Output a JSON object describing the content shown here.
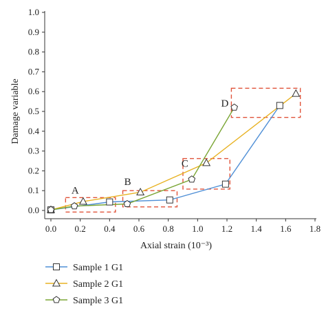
{
  "chart_data": {
    "type": "line",
    "title": "",
    "xlabel": "Axial strain (10⁻³)",
    "ylabel": "Damage variable",
    "xlim": [
      -0.05,
      1.8
    ],
    "ylim": [
      -0.02,
      1.0
    ],
    "xticks": [
      "0.0",
      "0.2",
      "0.4",
      "0.6",
      "0.8",
      "1.0",
      "1.2",
      "1.4",
      "1.6",
      "1.8"
    ],
    "yticks": [
      "0.0",
      "0.1",
      "0.2",
      "0.3",
      "0.4",
      "0.5",
      "0.6",
      "0.7",
      "0.8",
      "0.9",
      "1.0"
    ],
    "grid": false,
    "legend_position": "bottom-left",
    "series": [
      {
        "name": "Sample 1 G1",
        "color": "#4f8fd6",
        "marker": "square",
        "x": [
          0.0,
          0.4,
          0.81,
          1.19,
          1.56
        ],
        "y": [
          0.003,
          0.043,
          0.053,
          0.133,
          0.53
        ]
      },
      {
        "name": "Sample 2 G1",
        "color": "#e8b222",
        "marker": "triangle",
        "x": [
          0.0,
          0.22,
          0.61,
          1.06,
          1.67
        ],
        "y": [
          0.003,
          0.045,
          0.092,
          0.24,
          0.59
        ]
      },
      {
        "name": "Sample 3 G1",
        "color": "#7aa534",
        "marker": "pentagon",
        "x": [
          0.0,
          0.16,
          0.52,
          0.96,
          1.25
        ],
        "y": [
          0.003,
          0.022,
          0.033,
          0.157,
          0.52
        ]
      }
    ],
    "annotations": [
      {
        "label": "A",
        "box": {
          "x0": 0.1,
          "x1": 0.44,
          "y0": -0.008,
          "y1": 0.065
        },
        "label_at": {
          "x": 0.14,
          "y": 0.085
        }
      },
      {
        "label": "B",
        "box": {
          "x0": 0.49,
          "x1": 0.86,
          "y0": 0.018,
          "y1": 0.1
        },
        "label_at": {
          "x": 0.5,
          "y": 0.128
        }
      },
      {
        "label": "C",
        "box": {
          "x0": 0.9,
          "x1": 1.22,
          "y0": 0.108,
          "y1": 0.262
        },
        "label_at": {
          "x": 0.89,
          "y": 0.22
        }
      },
      {
        "label": "D",
        "box": {
          "x0": 1.23,
          "x1": 1.7,
          "y0": 0.47,
          "y1": 0.617
        },
        "label_at": {
          "x": 1.16,
          "y": 0.525
        }
      }
    ]
  }
}
